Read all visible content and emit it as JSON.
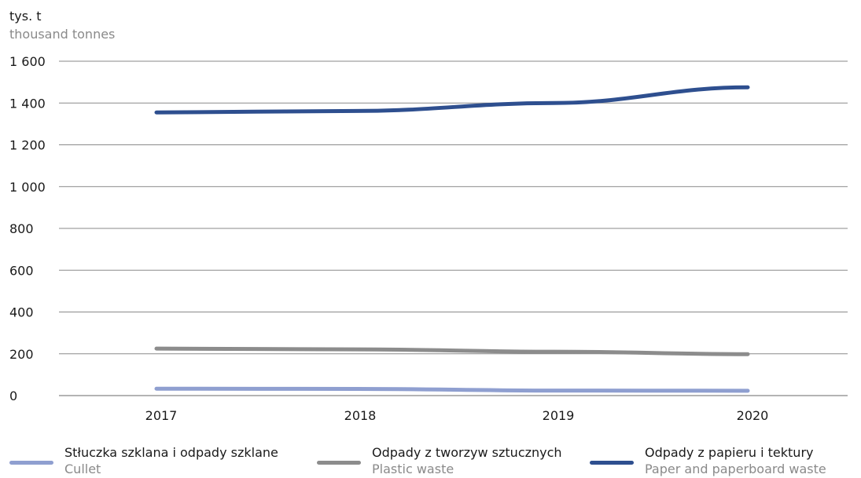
{
  "chart_data": {
    "type": "line",
    "unit_label": "tys. t",
    "unit_label_en": "thousand tonnes",
    "x": [
      "2017",
      "2018",
      "2019",
      "2020"
    ],
    "ylim": [
      0,
      1600
    ],
    "yticks": [
      0,
      200,
      400,
      600,
      800,
      1000,
      1200,
      1400,
      1600
    ],
    "ytick_labels": [
      "0",
      "200",
      "400",
      "600",
      "800",
      "1 000",
      "1 200",
      "1 400",
      "1 600"
    ],
    "grid": "horizontal",
    "legend": "bottom",
    "series": [
      {
        "name": "Stłuczka szklana i odpady szklane",
        "name_en": "Cullet",
        "color": "#8f9fd0",
        "values": [
          33,
          32,
          24,
          23
        ]
      },
      {
        "name": "Odpady z tworzyw sztucznych",
        "name_en": "Plastic waste",
        "color": "#8c8c8c",
        "values": [
          225,
          221,
          210,
          198
        ]
      },
      {
        "name": "Odpady z papieru i tektury",
        "name_en": "Paper and paperboard waste",
        "color": "#2e4f8f",
        "values": [
          1355,
          1362,
          1400,
          1475
        ]
      }
    ]
  }
}
